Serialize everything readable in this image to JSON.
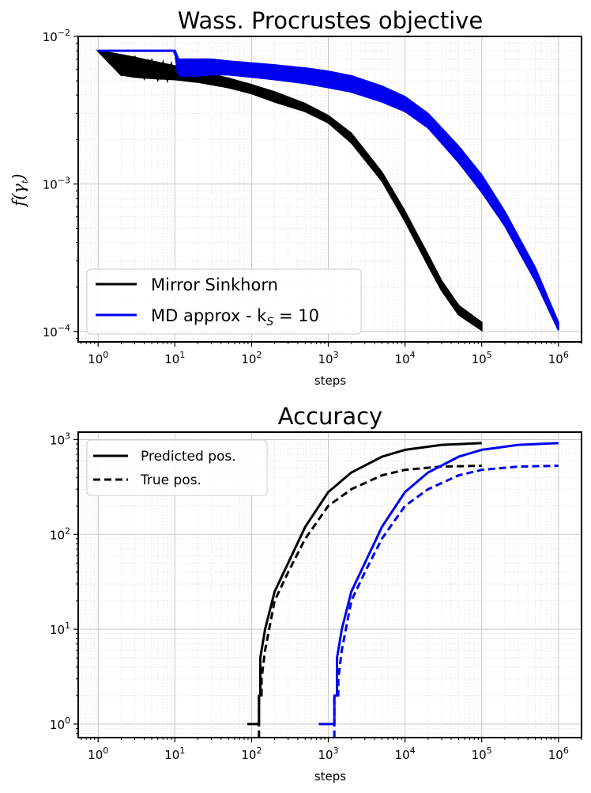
{
  "colors": {
    "black": "#000000",
    "blue": "#0000ee"
  },
  "chart_data": [
    {
      "type": "line",
      "title": "Wass. Procrustes objective",
      "xlabel": "steps",
      "ylabel": "f(γ",
      "ylabel_sub": "t",
      "ylabel_close": ")",
      "xscale": "log",
      "yscale": "log",
      "xlim": [
        0.55,
        2000000
      ],
      "ylim": [
        8.5e-05,
        0.01
      ],
      "grid": true,
      "legend_position": "lower-left",
      "x_ticks": [
        {
          "base": "10",
          "exp": "0",
          "value": 1
        },
        {
          "base": "10",
          "exp": "1",
          "value": 10
        },
        {
          "base": "10",
          "exp": "2",
          "value": 100
        },
        {
          "base": "10",
          "exp": "3",
          "value": 1000
        },
        {
          "base": "10",
          "exp": "4",
          "value": 10000
        },
        {
          "base": "10",
          "exp": "5",
          "value": 100000
        },
        {
          "base": "10",
          "exp": "6",
          "value": 1000000
        }
      ],
      "y_ticks": [
        {
          "base": "10",
          "exp": "−2",
          "value": 0.01
        },
        {
          "base": "10",
          "exp": "−3",
          "value": 0.001
        },
        {
          "base": "10",
          "exp": "−4",
          "value": 0.0001
        }
      ],
      "legend": [
        {
          "label": "Mirror Sinkhorn",
          "color": "#000000",
          "style": "solid"
        },
        {
          "label_main": "MD approx - k",
          "label_sub": "S",
          "label_end": " = 10",
          "color": "#0000ee",
          "style": "solid"
        }
      ],
      "series": [
        {
          "name": "Mirror Sinkhorn",
          "color": "#000000",
          "oscillation_until_step": 1000,
          "x": [
            1,
            2,
            3,
            5,
            10,
            20,
            50,
            100,
            200,
            500,
            1000,
            2000,
            5000,
            10000,
            20000,
            30000,
            50000,
            100000
          ],
          "y_upper": [
            0.008,
            0.0075,
            0.0072,
            0.0068,
            0.0063,
            0.0058,
            0.0052,
            0.0047,
            0.0042,
            0.0035,
            0.0029,
            0.0022,
            0.0012,
            0.00065,
            0.00033,
            0.00022,
            0.00015,
            0.000115
          ],
          "y_lower": [
            0.008,
            0.0055,
            0.0053,
            0.0052,
            0.0051,
            0.0049,
            0.0045,
            0.0041,
            0.0036,
            0.0031,
            0.0026,
            0.0019,
            0.00105,
            0.00056,
            0.00028,
            0.00019,
            0.00013,
            0.000102
          ]
        },
        {
          "name": "MD approx - k_S = 10",
          "color": "#0000ee",
          "oscillation_until_step": 1000000,
          "x": [
            1,
            2,
            5,
            10,
            11,
            20,
            30,
            50,
            100,
            200,
            500,
            1000,
            2000,
            5000,
            10000,
            20000,
            50000,
            100000,
            200000,
            500000,
            1000000
          ],
          "y_upper": [
            0.008,
            0.008,
            0.008,
            0.008,
            0.007,
            0.007,
            0.007,
            0.0068,
            0.0066,
            0.0064,
            0.0061,
            0.0058,
            0.0054,
            0.0046,
            0.0039,
            0.003,
            0.0018,
            0.00115,
            0.00065,
            0.00027,
            0.000115
          ],
          "y_lower": [
            0.008,
            0.008,
            0.008,
            0.008,
            0.0054,
            0.0054,
            0.0055,
            0.0055,
            0.0053,
            0.0051,
            0.0048,
            0.0045,
            0.0042,
            0.0036,
            0.0031,
            0.0024,
            0.0014,
            0.00088,
            0.00052,
            0.00022,
            0.000102
          ]
        }
      ]
    },
    {
      "type": "line",
      "title": "Accuracy",
      "xlabel": "steps",
      "ylabel": "",
      "xscale": "log",
      "yscale": "log",
      "xlim": [
        0.55,
        2000000
      ],
      "ylim": [
        0.72,
        1200
      ],
      "grid": true,
      "legend_position": "top-left",
      "x_ticks": [
        {
          "base": "10",
          "exp": "0",
          "value": 1
        },
        {
          "base": "10",
          "exp": "1",
          "value": 10
        },
        {
          "base": "10",
          "exp": "2",
          "value": 100
        },
        {
          "base": "10",
          "exp": "3",
          "value": 1000
        },
        {
          "base": "10",
          "exp": "4",
          "value": 10000
        },
        {
          "base": "10",
          "exp": "5",
          "value": 100000
        },
        {
          "base": "10",
          "exp": "6",
          "value": 1000000
        }
      ],
      "y_ticks": [
        {
          "base": "10",
          "exp": "0",
          "value": 1
        },
        {
          "base": "10",
          "exp": "1",
          "value": 10
        },
        {
          "base": "10",
          "exp": "2",
          "value": 100
        },
        {
          "base": "10",
          "exp": "3",
          "value": 1000
        }
      ],
      "legend": [
        {
          "label": "Predicted pos.",
          "color": "#000000",
          "style": "solid"
        },
        {
          "label": "True pos.",
          "color": "#000000",
          "style": "dashed"
        }
      ],
      "series": [
        {
          "color": "#000000",
          "style": "solid",
          "x": [
            88,
            125,
            125,
            130,
            130,
            150,
            200,
            300,
            500,
            1000,
            2000,
            5000,
            10000,
            30000,
            100000
          ],
          "y": [
            1,
            1,
            2,
            2,
            5,
            10,
            25,
            50,
            120,
            280,
            450,
            660,
            780,
            880,
            920
          ]
        },
        {
          "color": "#000000",
          "style": "dashed",
          "x": [
            125,
            125,
            135,
            135,
            150,
            200,
            300,
            500,
            1000,
            2000,
            5000,
            10000,
            30000,
            100000
          ],
          "y": [
            0.72,
            2,
            2,
            3,
            6,
            20,
            40,
            90,
            200,
            300,
            420,
            480,
            520,
            530
          ]
        },
        {
          "color": "#0000ee",
          "style": "solid",
          "x": [
            750,
            1200,
            1200,
            1300,
            1300,
            1500,
            2000,
            3000,
            5000,
            10000,
            20000,
            50000,
            100000,
            300000,
            1000000
          ],
          "y": [
            1,
            1,
            2,
            2,
            5,
            10,
            25,
            50,
            120,
            280,
            450,
            660,
            780,
            880,
            920
          ]
        },
        {
          "color": "#0000ee",
          "style": "dashed",
          "x": [
            1200,
            1200,
            1350,
            1350,
            1500,
            2000,
            3000,
            5000,
            10000,
            20000,
            50000,
            100000,
            300000,
            1000000
          ],
          "y": [
            0.72,
            2,
            2,
            3,
            6,
            20,
            40,
            90,
            200,
            300,
            420,
            480,
            520,
            530
          ]
        }
      ]
    }
  ]
}
